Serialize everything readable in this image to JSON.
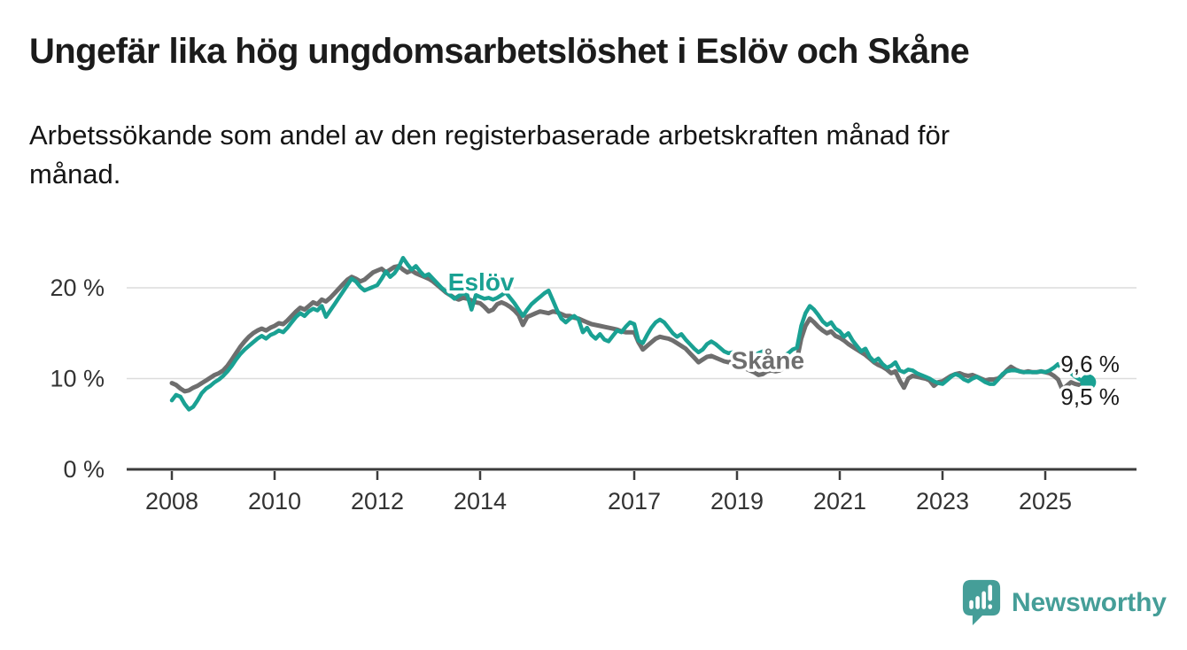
{
  "title": "Ungefär lika hög ungdomsarbetslöshet i Eslöv och Skåne",
  "subtitle": "Arbetssökande som andel av den registerbaserade arbetskraften månad för månad.",
  "subtitle_lines": [
    "Arbetssökande som andel av den registerbaserade arbetskraften månad för",
    "månad."
  ],
  "branding": {
    "logo_text": "Newsworthy"
  },
  "colors": {
    "eslov": "#1aa193",
    "skane": "#6e6e6e",
    "grid": "#dcdcdc",
    "axis": "#3c3c3c",
    "axis_text": "#333333",
    "value_text": "#1a1a1a",
    "logo": "#459e98"
  },
  "chart_data": {
    "type": "line",
    "frequency": "monthly",
    "start_year": 2008,
    "x_domain": [
      2008.0,
      2025.83
    ],
    "ylim": [
      0,
      24
    ],
    "grid": "horizontal",
    "legend_position": "inline-labels",
    "x_ticks": [
      2008,
      2010,
      2012,
      2014,
      2017,
      2019,
      2021,
      2023,
      2025
    ],
    "y_ticks": [
      {
        "value": 0,
        "label": "0 %"
      },
      {
        "value": 10,
        "label": "10 %"
      },
      {
        "value": 20,
        "label": "20 %"
      }
    ],
    "series": [
      {
        "name": "Skåne",
        "color_key": "skane",
        "end_label": "9,5 %",
        "end_dot": false,
        "values": [
          9.5,
          9.3,
          8.9,
          8.6,
          8.7,
          9.0,
          9.2,
          9.5,
          9.8,
          10.1,
          10.4,
          10.6,
          10.9,
          11.4,
          12.1,
          12.8,
          13.5,
          14.1,
          14.6,
          15.0,
          15.3,
          15.5,
          15.3,
          15.6,
          15.8,
          16.1,
          16.0,
          16.4,
          16.9,
          17.4,
          17.8,
          17.6,
          18.0,
          18.4,
          18.2,
          18.7,
          18.5,
          18.9,
          19.4,
          19.9,
          20.4,
          20.9,
          21.2,
          21.0,
          20.7,
          20.9,
          21.3,
          21.7,
          21.9,
          22.1,
          21.7,
          22.0,
          22.3,
          22.4,
          22.0,
          21.7,
          21.9,
          21.6,
          21.4,
          21.2,
          21.0,
          20.7,
          20.3,
          19.9,
          19.5,
          19.2,
          18.9,
          18.7,
          18.9,
          18.8,
          18.6,
          18.4,
          18.3,
          17.9,
          17.4,
          17.6,
          18.2,
          18.4,
          18.2,
          17.9,
          17.5,
          17.0,
          15.9,
          16.8,
          17.0,
          17.2,
          17.4,
          17.3,
          17.2,
          17.4,
          17.3,
          17.1,
          16.9,
          16.9,
          16.7,
          16.6,
          16.4,
          16.2,
          16.0,
          15.9,
          15.8,
          15.7,
          15.6,
          15.5,
          15.4,
          15.2,
          15.1,
          15.1,
          15.1,
          14.0,
          13.2,
          13.6,
          14.0,
          14.4,
          14.6,
          14.5,
          14.4,
          14.2,
          13.9,
          13.6,
          13.3,
          12.8,
          12.3,
          11.8,
          12.1,
          12.4,
          12.5,
          12.3,
          12.1,
          11.9,
          11.8,
          11.9,
          11.7,
          11.4,
          11.1,
          10.9,
          10.7,
          10.4,
          10.5,
          10.8,
          10.9,
          10.8,
          10.9,
          11.2,
          11.5,
          11.8,
          12.1,
          14.4,
          15.8,
          16.6,
          16.2,
          15.7,
          15.3,
          15.0,
          15.2,
          14.7,
          14.5,
          14.2,
          13.8,
          13.5,
          13.2,
          12.9,
          12.6,
          12.2,
          11.8,
          11.5,
          11.3,
          11.0,
          10.6,
          10.8,
          9.8,
          9.0,
          10.0,
          10.3,
          10.2,
          10.1,
          10.0,
          9.8,
          9.2,
          9.6,
          9.7,
          10.0,
          10.3,
          10.5,
          10.6,
          10.4,
          10.3,
          10.4,
          10.2,
          10.0,
          9.8,
          9.9,
          9.9,
          10.0,
          10.4,
          10.9,
          11.3,
          11.0,
          10.8,
          10.7,
          10.8,
          10.7,
          10.7,
          10.8,
          10.7,
          10.6,
          10.3,
          9.9,
          8.8,
          9.2,
          9.6,
          9.4,
          9.3,
          9.4,
          9.5
        ]
      },
      {
        "name": "Eslöv",
        "color_key": "eslov",
        "end_label": "9,6 %",
        "end_dot": true,
        "values": [
          7.6,
          8.2,
          8.0,
          7.2,
          6.6,
          6.9,
          7.6,
          8.4,
          8.9,
          9.2,
          9.6,
          9.9,
          10.3,
          10.8,
          11.4,
          12.1,
          12.7,
          13.2,
          13.6,
          14.0,
          14.4,
          14.7,
          14.4,
          14.8,
          15.0,
          15.3,
          15.1,
          15.6,
          16.2,
          16.8,
          17.2,
          16.9,
          17.4,
          17.7,
          17.5,
          18.0,
          16.8,
          17.5,
          18.2,
          18.9,
          19.6,
          20.3,
          21.0,
          20.7,
          20.1,
          19.7,
          19.9,
          20.1,
          20.3,
          21.0,
          21.8,
          21.2,
          21.6,
          22.3,
          23.3,
          22.6,
          22.0,
          22.4,
          21.8,
          21.3,
          21.5,
          21.0,
          20.5,
          20.0,
          19.6,
          19.2,
          18.8,
          19.1,
          19.4,
          19.2,
          17.6,
          19.2,
          19.0,
          18.8,
          18.9,
          18.7,
          18.9,
          19.2,
          19.5,
          18.9,
          18.3,
          17.6,
          16.9,
          17.6,
          18.2,
          18.6,
          19.0,
          19.4,
          19.7,
          18.6,
          17.5,
          16.6,
          16.2,
          16.6,
          16.9,
          16.5,
          15.1,
          15.6,
          14.8,
          14.4,
          14.9,
          14.3,
          14.1,
          14.7,
          15.3,
          15.1,
          15.7,
          16.2,
          16.0,
          14.2,
          13.9,
          14.8,
          15.6,
          16.2,
          16.5,
          16.2,
          15.6,
          15.0,
          14.6,
          14.9,
          14.3,
          13.8,
          13.3,
          12.9,
          13.2,
          13.8,
          14.1,
          13.8,
          13.4,
          13.0,
          12.8,
          12.9,
          12.7,
          12.4,
          12.2,
          12.3,
          12.5,
          12.8,
          13.0,
          12.8,
          12.5,
          12.3,
          12.2,
          12.5,
          12.8,
          13.2,
          13.4,
          15.8,
          17.2,
          18.0,
          17.6,
          17.0,
          16.3,
          15.9,
          16.2,
          15.5,
          15.2,
          14.6,
          15.0,
          14.2,
          13.6,
          13.0,
          13.3,
          12.4,
          11.9,
          12.2,
          11.6,
          11.2,
          11.4,
          11.8,
          10.9,
          10.7,
          11.0,
          10.9,
          10.6,
          10.4,
          10.2,
          10.0,
          9.7,
          9.5,
          9.4,
          9.8,
          10.2,
          10.5,
          10.3,
          9.9,
          9.7,
          10.0,
          10.2,
          9.9,
          9.6,
          9.4,
          9.4,
          9.9,
          10.5,
          10.8,
          10.9,
          10.9,
          10.8,
          10.7,
          10.7,
          10.7,
          10.7,
          10.8,
          10.7,
          10.9,
          11.2,
          11.6,
          11.0,
          10.9,
          10.6,
          10.2,
          9.9,
          9.7,
          9.6
        ]
      }
    ],
    "annotations": [
      {
        "name": "eslov-series-label",
        "text": "Eslöv",
        "year": 2014.02,
        "value": 20.6,
        "anchor": "middle",
        "bold": true,
        "color_key": "eslov"
      },
      {
        "name": "skane-series-label",
        "text": "Skåne",
        "year": 2019.6,
        "value": 11.95,
        "anchor": "middle",
        "bold": true,
        "color_key": "skane"
      },
      {
        "name": "eslov-end-value-label",
        "text": "9,6 %",
        "year": 2025.3,
        "value": 11.6,
        "anchor": "start",
        "bold": false,
        "color_key": "value_text"
      },
      {
        "name": "skane-end-value-label",
        "text": "9,5 %",
        "year": 2025.3,
        "value": 8.0,
        "anchor": "start",
        "bold": false,
        "color_key": "value_text"
      }
    ]
  }
}
